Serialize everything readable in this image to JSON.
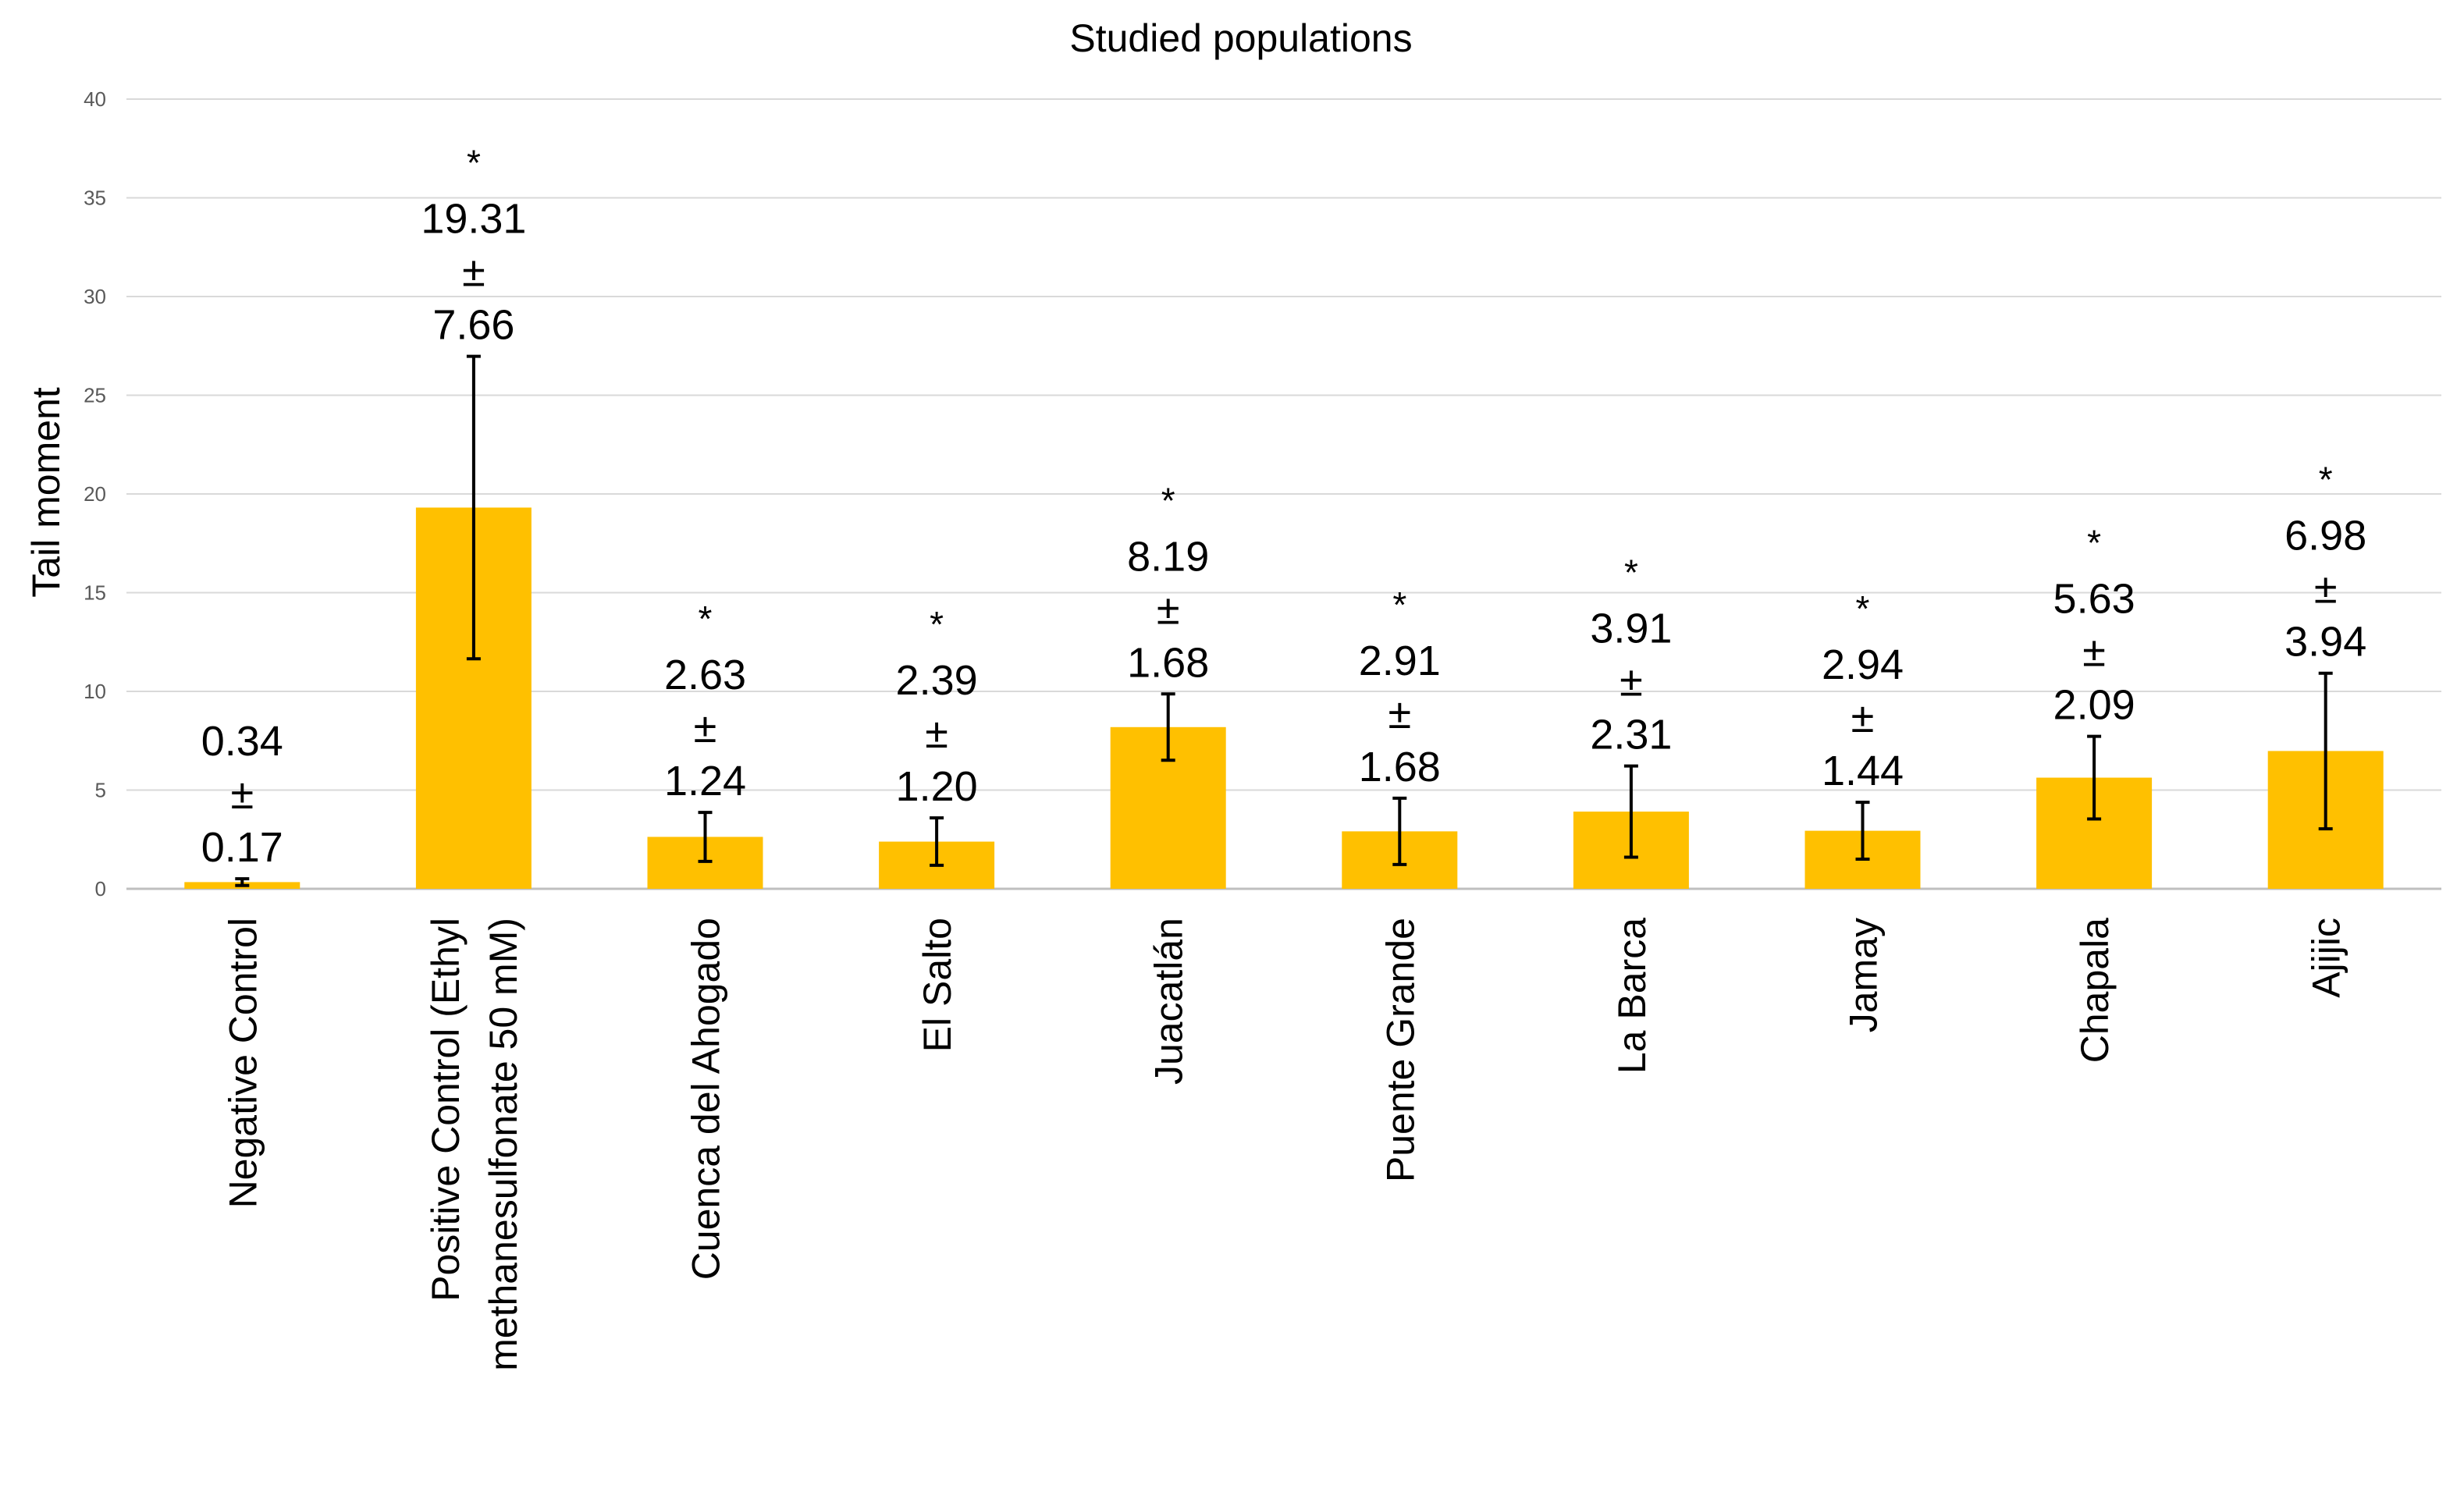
{
  "chart_data": {
    "type": "bar",
    "title": "Studied populations",
    "xlabel": "",
    "ylabel": "Tail moment",
    "ylim": [
      0,
      40
    ],
    "yticks": [
      0,
      5,
      10,
      15,
      20,
      25,
      30,
      35,
      40
    ],
    "grid": true,
    "legend": "none",
    "bar_color": "#FFC000",
    "categories": [
      [
        "Negative Control"
      ],
      [
        "Positive Control (Ethyl",
        "methanesulfonate 50 mM)"
      ],
      [
        "Cuenca del Ahogado"
      ],
      [
        "El Salto"
      ],
      [
        "Juacatlán"
      ],
      [
        "Puente Grande"
      ],
      [
        "La Barca"
      ],
      [
        "Jamay"
      ],
      [
        "Chapala"
      ],
      [
        "Ajijic"
      ]
    ],
    "values": [
      0.34,
      19.31,
      2.63,
      2.39,
      8.19,
      2.91,
      3.91,
      2.94,
      5.63,
      6.98
    ],
    "errors": [
      0.17,
      7.66,
      1.24,
      1.2,
      1.68,
      1.68,
      2.31,
      1.44,
      2.09,
      3.94
    ],
    "value_labels": [
      "0.34",
      "19.31",
      "2.63",
      "2.39",
      "8.19",
      "2.91",
      "3.91",
      "2.94",
      "5.63",
      "6.98"
    ],
    "error_labels": [
      "0.17",
      "7.66",
      "1.24",
      "1.20",
      "1.68",
      "1.68",
      "2.31",
      "1.44",
      "2.09",
      "3.94"
    ],
    "pm_symbol": "±",
    "significance": [
      "",
      "*",
      "*",
      "*",
      "*",
      "*",
      "*",
      "*",
      "*",
      "*"
    ]
  }
}
